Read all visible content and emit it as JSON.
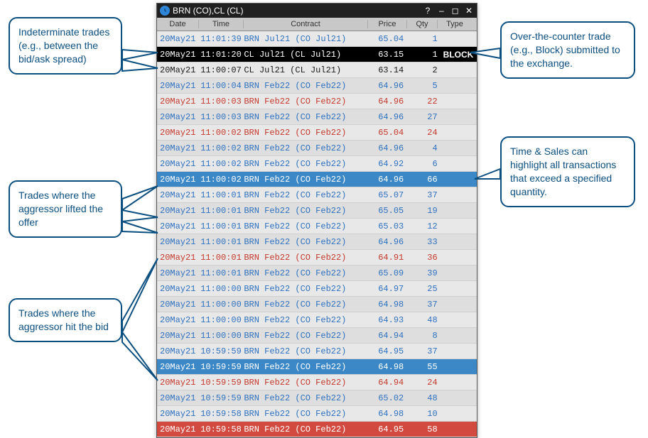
{
  "window": {
    "title": "BRN (CO),CL (CL)",
    "columns": {
      "date": "Date",
      "time": "Time",
      "contract": "Contract",
      "price": "Price",
      "qty": "Qty",
      "type": "Type"
    }
  },
  "colors": {
    "callout_border": "#0b4f80",
    "blue_text": "#2f72c0",
    "green_text": "#1a8a1a",
    "red_text": "#c63a2e",
    "black_text": "#1a1a1a",
    "white_text": "#ffffff",
    "row_even": "#e8e8e8",
    "row_odd": "#dedede",
    "row_black": "#000000",
    "hl_blue": "#3c88c6",
    "hl_red": "#d24a3f"
  },
  "rows": [
    {
      "date": "20May21",
      "time": "11:01:39",
      "contract": "BRN Jul21 (CO Jul21)",
      "price": "65.04",
      "qty": "1",
      "type": "",
      "fg": "blue",
      "bg": "even"
    },
    {
      "date": "20May21",
      "time": "11:01:20",
      "contract": "CL Jul21 (CL Jul21)",
      "price": "63.15",
      "qty": "1",
      "type": "BLOCK",
      "fg": "white",
      "bg": "black"
    },
    {
      "date": "20May21",
      "time": "11:00:07",
      "contract": "CL Jul21 (CL Jul21)",
      "price": "63.14",
      "qty": "2",
      "type": "",
      "fg": "black",
      "bg": "even"
    },
    {
      "date": "20May21",
      "time": "11:00:04",
      "contract": "BRN Feb22 (CO Feb22)",
      "price": "64.96",
      "qty": "5",
      "type": "",
      "fg": "blue",
      "bg": "odd"
    },
    {
      "date": "20May21",
      "time": "11:00:03",
      "contract": "BRN Feb22 (CO Feb22)",
      "price": "64.96",
      "qty": "22",
      "type": "",
      "fg": "red",
      "bg": "even"
    },
    {
      "date": "20May21",
      "time": "11:00:03",
      "contract": "BRN Feb22 (CO Feb22)",
      "price": "64.96",
      "qty": "27",
      "type": "",
      "fg": "blue",
      "bg": "odd"
    },
    {
      "date": "20May21",
      "time": "11:00:02",
      "contract": "BRN Feb22 (CO Feb22)",
      "price": "65.04",
      "qty": "24",
      "type": "",
      "fg": "red",
      "bg": "even"
    },
    {
      "date": "20May21",
      "time": "11:00:02",
      "contract": "BRN Feb22 (CO Feb22)",
      "price": "64.96",
      "qty": "4",
      "type": "",
      "fg": "blue",
      "bg": "odd"
    },
    {
      "date": "20May21",
      "time": "11:00:02",
      "contract": "BRN Feb22 (CO Feb22)",
      "price": "64.92",
      "qty": "6",
      "type": "",
      "fg": "blue",
      "bg": "even"
    },
    {
      "date": "20May21",
      "time": "11:00:02",
      "contract": "BRN Feb22 (CO Feb22)",
      "price": "64.96",
      "qty": "66",
      "type": "",
      "fg": "white",
      "bg": "hl_blue"
    },
    {
      "date": "20May21",
      "time": "11:00:01",
      "contract": "BRN Feb22 (CO Feb22)",
      "price": "65.07",
      "qty": "37",
      "type": "",
      "fg": "blue",
      "bg": "even"
    },
    {
      "date": "20May21",
      "time": "11:00:01",
      "contract": "BRN Feb22 (CO Feb22)",
      "price": "65.05",
      "qty": "19",
      "type": "",
      "fg": "blue",
      "bg": "odd"
    },
    {
      "date": "20May21",
      "time": "11:00:01",
      "contract": "BRN Feb22 (CO Feb22)",
      "price": "65.03",
      "qty": "12",
      "type": "",
      "fg": "blue",
      "bg": "even"
    },
    {
      "date": "20May21",
      "time": "11:00:01",
      "contract": "BRN Feb22 (CO Feb22)",
      "price": "64.96",
      "qty": "33",
      "type": "",
      "fg": "blue",
      "bg": "odd"
    },
    {
      "date": "20May21",
      "time": "11:00:01",
      "contract": "BRN Feb22 (CO Feb22)",
      "price": "64.91",
      "qty": "36",
      "type": "",
      "fg": "red",
      "bg": "even",
      "tick": "down"
    },
    {
      "date": "20May21",
      "time": "11:00:01",
      "contract": "BRN Feb22 (CO Feb22)",
      "price": "65.09",
      "qty": "39",
      "type": "",
      "fg": "blue",
      "bg": "odd"
    },
    {
      "date": "20May21",
      "time": "11:00:00",
      "contract": "BRN Feb22 (CO Feb22)",
      "price": "64.97",
      "qty": "25",
      "type": "",
      "fg": "blue",
      "bg": "even"
    },
    {
      "date": "20May21",
      "time": "11:00:00",
      "contract": "BRN Feb22 (CO Feb22)",
      "price": "64.98",
      "qty": "37",
      "type": "",
      "fg": "blue",
      "bg": "odd"
    },
    {
      "date": "20May21",
      "time": "11:00:00",
      "contract": "BRN Feb22 (CO Feb22)",
      "price": "64.93",
      "qty": "48",
      "type": "",
      "fg": "blue",
      "bg": "even"
    },
    {
      "date": "20May21",
      "time": "11:00:00",
      "contract": "BRN Feb22 (CO Feb22)",
      "price": "64.94",
      "qty": "8",
      "type": "",
      "fg": "blue",
      "bg": "odd"
    },
    {
      "date": "20May21",
      "time": "10:59:59",
      "contract": "BRN Feb22 (CO Feb22)",
      "price": "64.95",
      "qty": "37",
      "type": "",
      "fg": "blue",
      "bg": "even"
    },
    {
      "date": "20May21",
      "time": "10:59:59",
      "contract": "BRN Feb22 (CO Feb22)",
      "price": "64.98",
      "qty": "55",
      "type": "",
      "fg": "white",
      "bg": "hl_blue"
    },
    {
      "date": "20May21",
      "time": "10:59:59",
      "contract": "BRN Feb22 (CO Feb22)",
      "price": "64.94",
      "qty": "24",
      "type": "",
      "fg": "red",
      "bg": "even"
    },
    {
      "date": "20May21",
      "time": "10:59:59",
      "contract": "BRN Feb22 (CO Feb22)",
      "price": "65.02",
      "qty": "48",
      "type": "",
      "fg": "blue",
      "bg": "odd"
    },
    {
      "date": "20May21",
      "time": "10:59:58",
      "contract": "BRN Feb22 (CO Feb22)",
      "price": "64.98",
      "qty": "10",
      "type": "",
      "fg": "blue",
      "bg": "even"
    },
    {
      "date": "20May21",
      "time": "10:59:58",
      "contract": "BRN Feb22 (CO Feb22)",
      "price": "64.95",
      "qty": "58",
      "type": "",
      "fg": "white",
      "bg": "hl_red"
    }
  ],
  "callouts": {
    "c1": "Indeterminate trades (e.g., between the bid/ask spread)",
    "c2": "Trades where the aggressor lifted the offer",
    "c3": "Trades where the aggressor hit the bid",
    "c4": "Over-the-counter trade (e.g., Block) submitted to the exchange.",
    "c5": "Time & Sales can highlight all transactions that exceed a specified quantity."
  }
}
